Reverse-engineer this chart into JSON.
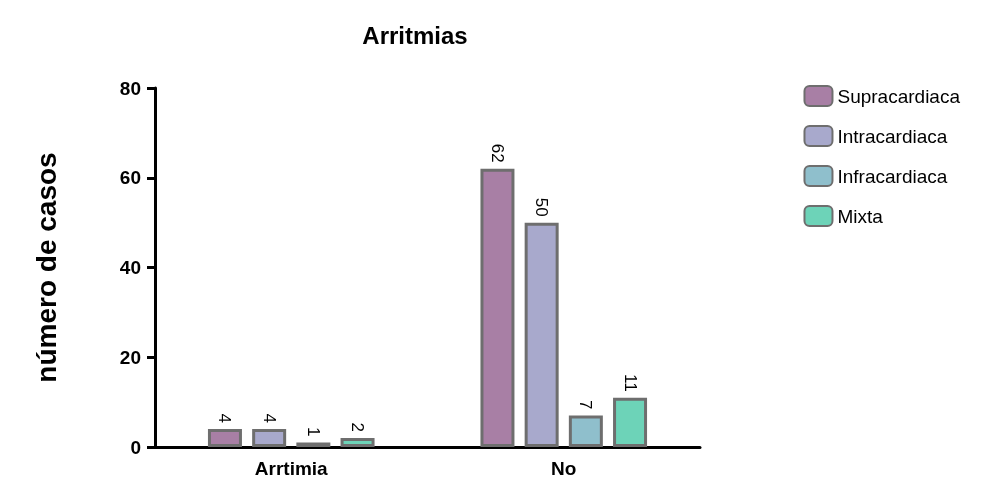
{
  "chart_data": {
    "type": "bar",
    "title": "Arritmias",
    "ylabel": "número de casos",
    "categories": [
      "Arrtimia",
      "No"
    ],
    "series": [
      {
        "name": "Supracardiaca",
        "color": "#a87fa5",
        "values": [
          4,
          62
        ]
      },
      {
        "name": "Intracardiaca",
        "color": "#a8a9cc",
        "values": [
          4,
          50
        ]
      },
      {
        "name": "Infracardiaca",
        "color": "#8fbfcc",
        "values": [
          1,
          7
        ]
      },
      {
        "name": "Mixta",
        "color": "#6dd3b8",
        "values": [
          2,
          11
        ]
      }
    ],
    "ylim": [
      0,
      80
    ],
    "yticks": [
      0,
      20,
      40,
      60,
      80
    ],
    "grid": false,
    "legend": "right",
    "data_labels": true
  }
}
